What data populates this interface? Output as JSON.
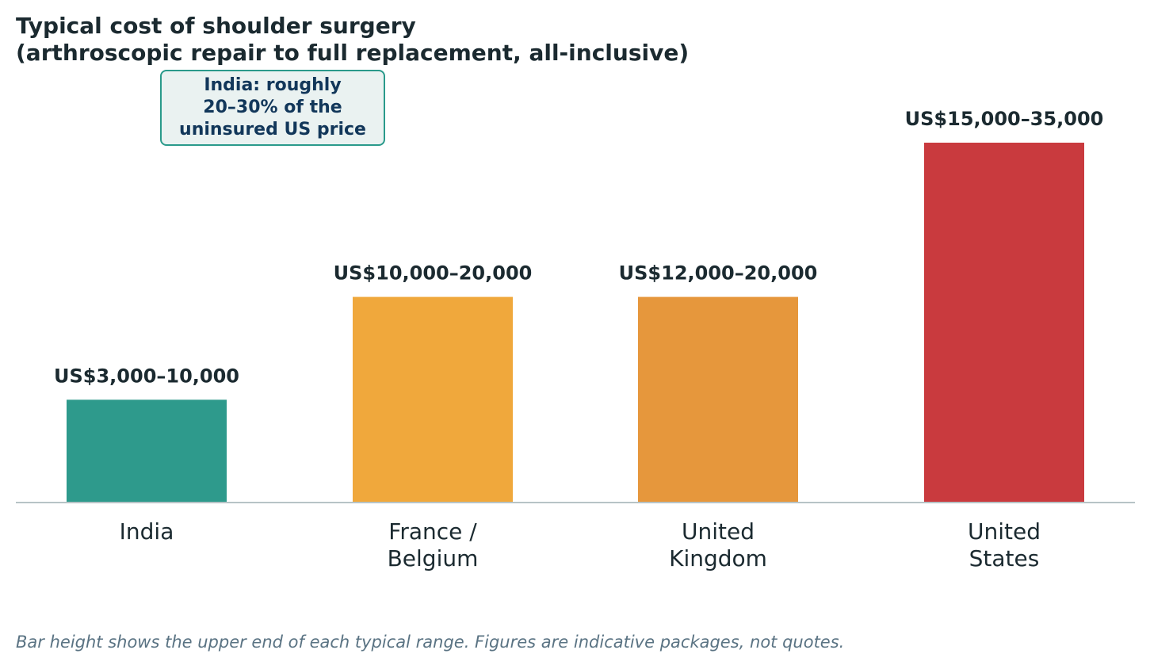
{
  "chart_data": {
    "type": "bar",
    "title_lines": [
      "Typical cost of shoulder surgery",
      "(arthroscopic repair to full replacement, all-inclusive)"
    ],
    "xlabel": "",
    "ylabel": "",
    "ylim": [
      0,
      35000
    ],
    "grid": false,
    "legend": "none",
    "categories": [
      [
        "India"
      ],
      [
        "France /",
        "Belgium"
      ],
      [
        "United",
        "Kingdom"
      ],
      [
        "United",
        "States"
      ]
    ],
    "values": [
      10000,
      20000,
      20000,
      35000
    ],
    "ranges": [
      [
        3000,
        10000
      ],
      [
        10000,
        20000
      ],
      [
        12000,
        20000
      ],
      [
        15000,
        35000
      ]
    ],
    "data_labels": [
      "US$3,000–10,000",
      "US$10,000–20,000",
      "US$12,000–20,000",
      "US$15,000–35,000"
    ],
    "colors": [
      "#2e9a8c",
      "#f0a83c",
      "#e6973c",
      "#c93a3e"
    ],
    "axis_color": "#b7c3c6",
    "annotation": {
      "text": "India: roughly\n20–30% of the\nuninsured US price",
      "border_color": "#2a9a8b",
      "fill_color": "#eaf2f1",
      "text_color": "#12375a"
    },
    "footnote": "Bar height shows the upper end of each typical range. Figures are indicative packages, not quotes."
  }
}
